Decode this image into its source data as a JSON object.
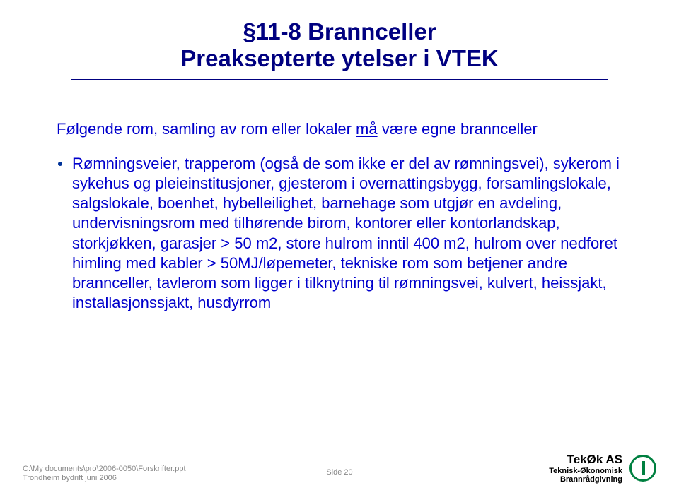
{
  "title": {
    "line1": "§11-8 Brannceller",
    "line2": "Preaksepterte ytelser i VTEK"
  },
  "subhead": {
    "pre": "Følgende rom, samling av rom eller lokaler ",
    "underlined": "må",
    "post": " være egne brannceller"
  },
  "bullet_text": "Rømningsveier, trapperom (også de som ikke er del av rømningsvei), sykerom i sykehus og pleieinstitusjoner, gjesterom i overnattingsbygg, forsamlingslokale, salgslokale, boenhet, hybelleilighet, barnehage som utgjør en avdeling, undervisningsrom med tilhørende birom, kontorer eller kontorlandskap, storkjøkken, garasjer > 50 m2, store hulrom inntil 400 m2, hulrom over nedforet himling med kabler > 50MJ/løpemeter, tekniske rom som betjener andre brannceller, tavlerom som ligger i tilknytning til rømningsvei, kulvert, heissjakt, installasjonssjakt, husdyrrom",
  "footer": {
    "path": "C:\\My documents\\pro\\2006-0050\\Forskrifter.ppt",
    "org": "Trondheim bydrift  juni 2006",
    "page": "Side 20",
    "brand": "TekØk AS",
    "brand_sub1": "Teknisk-Økonomisk",
    "brand_sub2": "Brannrådgivning"
  },
  "colors": {
    "title": "#000080",
    "body": "#0000cc",
    "footer_grey": "#888888",
    "logo_green": "#008040"
  }
}
